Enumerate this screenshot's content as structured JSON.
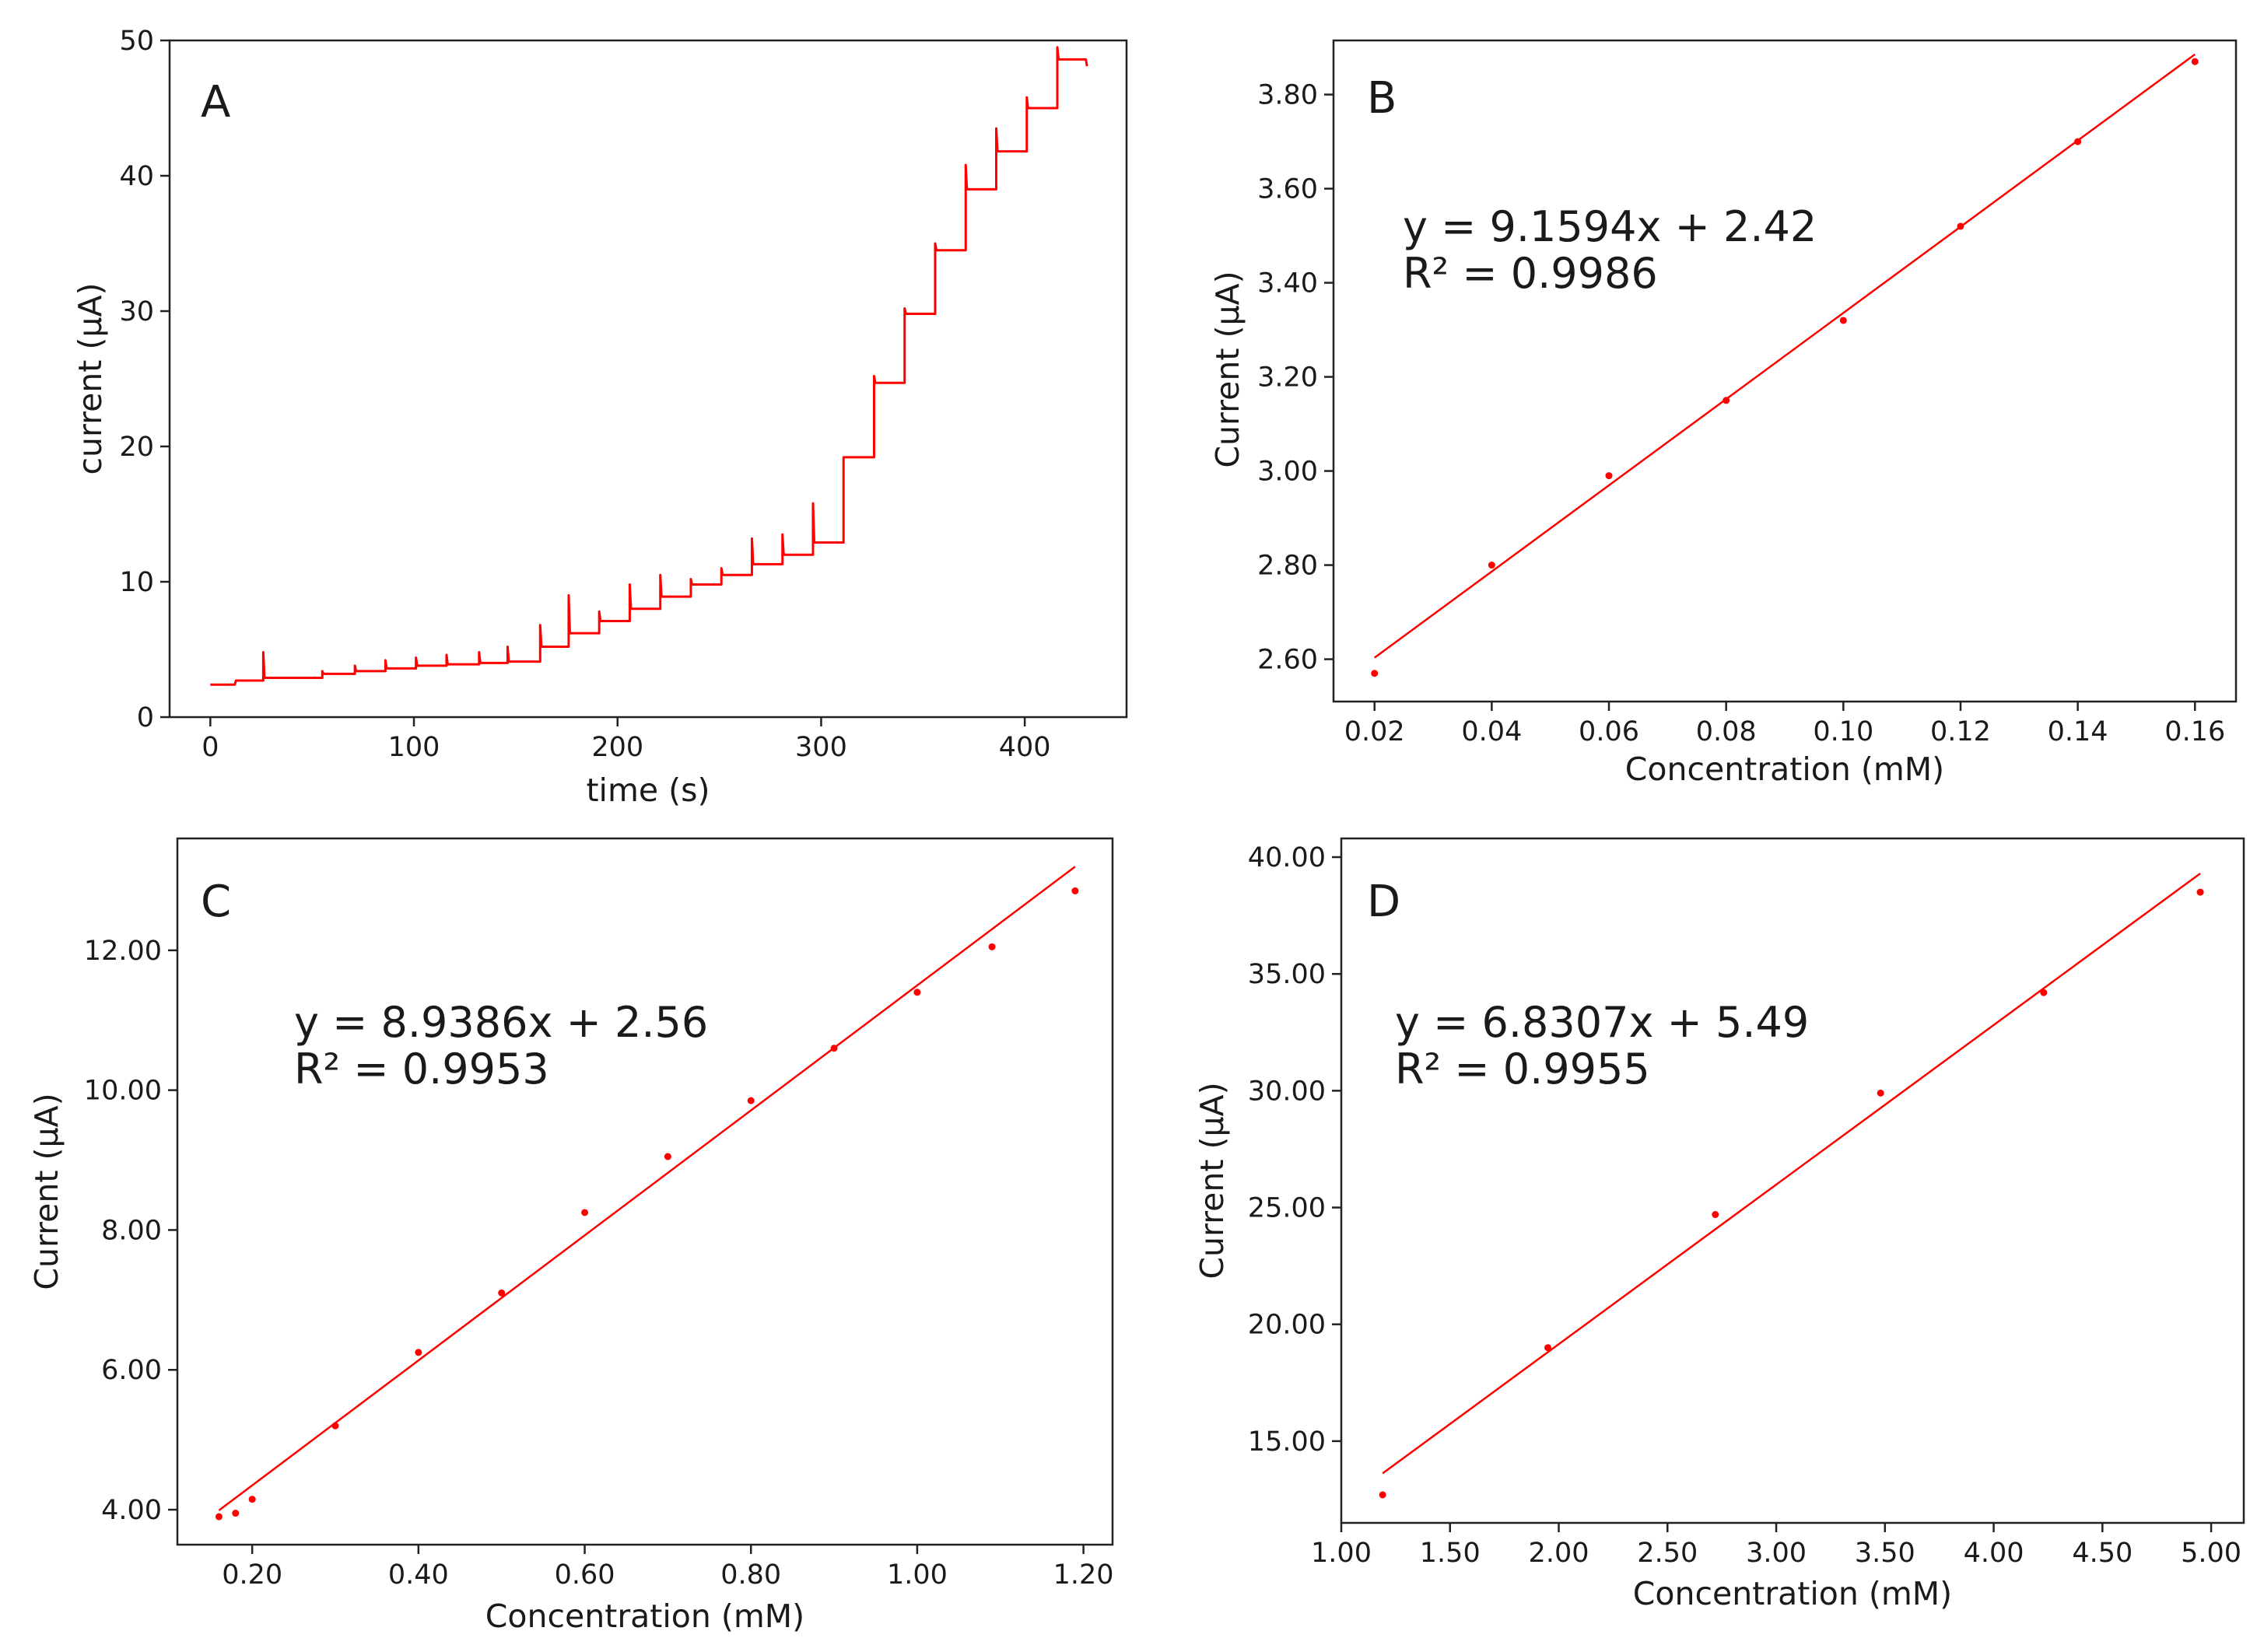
{
  "chart_data": [
    {
      "id": "A",
      "type": "line",
      "panel_label": "A",
      "xlabel": "time (s)",
      "ylabel": "current (µA)",
      "xlim": [
        -20,
        450
      ],
      "ylim": [
        0,
        50
      ],
      "xticks": [
        0,
        100,
        200,
        300,
        400
      ],
      "yticks": [
        0,
        10,
        20,
        30,
        40,
        50
      ],
      "tick_decimals": 0,
      "grid": false,
      "color": "#ff0000",
      "steps": [
        {
          "t": 0,
          "level": 2.4,
          "spike": 0
        },
        {
          "t": 12,
          "level": 2.7,
          "spike": 0
        },
        {
          "t": 26,
          "level": 2.9,
          "spike": 4.8
        },
        {
          "t": 55,
          "level": 3.2,
          "spike": 3.4
        },
        {
          "t": 71,
          "level": 3.4,
          "spike": 3.8
        },
        {
          "t": 86,
          "level": 3.6,
          "spike": 4.2
        },
        {
          "t": 101,
          "level": 3.8,
          "spike": 4.4
        },
        {
          "t": 116,
          "level": 3.9,
          "spike": 4.6
        },
        {
          "t": 132,
          "level": 4.0,
          "spike": 4.8
        },
        {
          "t": 146,
          "level": 4.1,
          "spike": 5.2
        },
        {
          "t": 162,
          "level": 5.2,
          "spike": 6.8
        },
        {
          "t": 176,
          "level": 6.2,
          "spike": 9.0
        },
        {
          "t": 191,
          "level": 7.1,
          "spike": 7.8
        },
        {
          "t": 206,
          "level": 8.0,
          "spike": 9.8
        },
        {
          "t": 221,
          "level": 8.9,
          "spike": 10.5
        },
        {
          "t": 236,
          "level": 9.8,
          "spike": 10.2
        },
        {
          "t": 251,
          "level": 10.5,
          "spike": 11.0
        },
        {
          "t": 266,
          "level": 11.3,
          "spike": 13.2
        },
        {
          "t": 281,
          "level": 12.0,
          "spike": 13.5
        },
        {
          "t": 296,
          "level": 12.9,
          "spike": 15.8
        },
        {
          "t": 311,
          "level": 19.2,
          "spike": 19.2
        },
        {
          "t": 326,
          "level": 24.7,
          "spike": 25.2
        },
        {
          "t": 341,
          "level": 29.8,
          "spike": 30.2
        },
        {
          "t": 356,
          "level": 34.5,
          "spike": 35.0
        },
        {
          "t": 371,
          "level": 39.0,
          "spike": 40.8
        },
        {
          "t": 386,
          "level": 41.8,
          "spike": 43.5
        },
        {
          "t": 401,
          "level": 45.0,
          "spike": 45.8
        },
        {
          "t": 416,
          "level": 48.6,
          "spike": 49.5
        },
        {
          "t": 430,
          "level": 48.1,
          "spike": 0
        }
      ]
    },
    {
      "id": "B",
      "type": "scatter",
      "panel_label": "B",
      "xlabel": "Concentration (mM)",
      "ylabel": "Current (µA)",
      "xlim": [
        0.013,
        0.167
      ],
      "ylim": [
        2.51,
        3.915
      ],
      "xticks": [
        0.02,
        0.04,
        0.06,
        0.08,
        0.1,
        0.12,
        0.14,
        0.16
      ],
      "yticks": [
        2.6,
        2.8,
        3.0,
        3.2,
        3.4,
        3.6,
        3.8
      ],
      "tick_decimals": 2,
      "grid": false,
      "color": "#ff0000",
      "points": {
        "x": [
          0.02,
          0.04,
          0.06,
          0.08,
          0.1,
          0.12,
          0.14,
          0.16
        ],
        "y": [
          2.57,
          2.8,
          2.99,
          3.15,
          3.32,
          3.52,
          3.7,
          3.87
        ]
      },
      "fit": {
        "slope": 9.1594,
        "intercept": 2.42,
        "x_range": [
          0.02,
          0.16
        ]
      },
      "equation": "y = 9.1594x + 2.42",
      "r_squared": "R² = 0.9986"
    },
    {
      "id": "C",
      "type": "scatter",
      "panel_label": "C",
      "xlabel": "Concentration (mM)",
      "ylabel": "Current (µA)",
      "xlim": [
        0.11,
        1.235
      ],
      "ylim": [
        3.5,
        13.6
      ],
      "xticks": [
        0.2,
        0.4,
        0.6,
        0.8,
        1.0,
        1.2
      ],
      "yticks": [
        4.0,
        6.0,
        8.0,
        10.0,
        12.0
      ],
      "tick_decimals": 2,
      "grid": false,
      "color": "#ff0000",
      "points": {
        "x": [
          0.16,
          0.18,
          0.2,
          0.3,
          0.4,
          0.5,
          0.6,
          0.7,
          0.8,
          0.9,
          1.0,
          1.09,
          1.19
        ],
        "y": [
          3.9,
          3.95,
          4.15,
          5.2,
          6.25,
          7.1,
          8.25,
          9.05,
          9.85,
          10.6,
          11.4,
          12.05,
          12.85
        ]
      },
      "fit": {
        "slope": 8.9386,
        "intercept": 2.56,
        "x_range": [
          0.16,
          1.19
        ]
      },
      "equation": "y = 8.9386x + 2.56",
      "r_squared": "R² = 0.9953"
    },
    {
      "id": "D",
      "type": "scatter",
      "panel_label": "D",
      "xlabel": "Concentration (mM)",
      "ylabel": "Current (µA)",
      "xlim": [
        1.0,
        5.15
      ],
      "ylim": [
        11.5,
        40.8
      ],
      "xticks": [
        1.0,
        1.5,
        2.0,
        2.5,
        3.0,
        3.5,
        4.0,
        4.5,
        5.0
      ],
      "yticks": [
        15.0,
        20.0,
        25.0,
        30.0,
        35.0,
        40.0
      ],
      "tick_decimals": 2,
      "grid": false,
      "color": "#ff0000",
      "points": {
        "x": [
          1.19,
          1.95,
          2.72,
          3.48,
          4.23,
          4.95
        ],
        "y": [
          12.7,
          19.0,
          24.7,
          29.9,
          34.2,
          38.5
        ]
      },
      "fit": {
        "slope": 6.8307,
        "intercept": 5.49,
        "x_range": [
          1.19,
          4.95
        ]
      },
      "equation": "y = 6.8307x + 5.49",
      "r_squared": "R² = 0.9955"
    }
  ]
}
